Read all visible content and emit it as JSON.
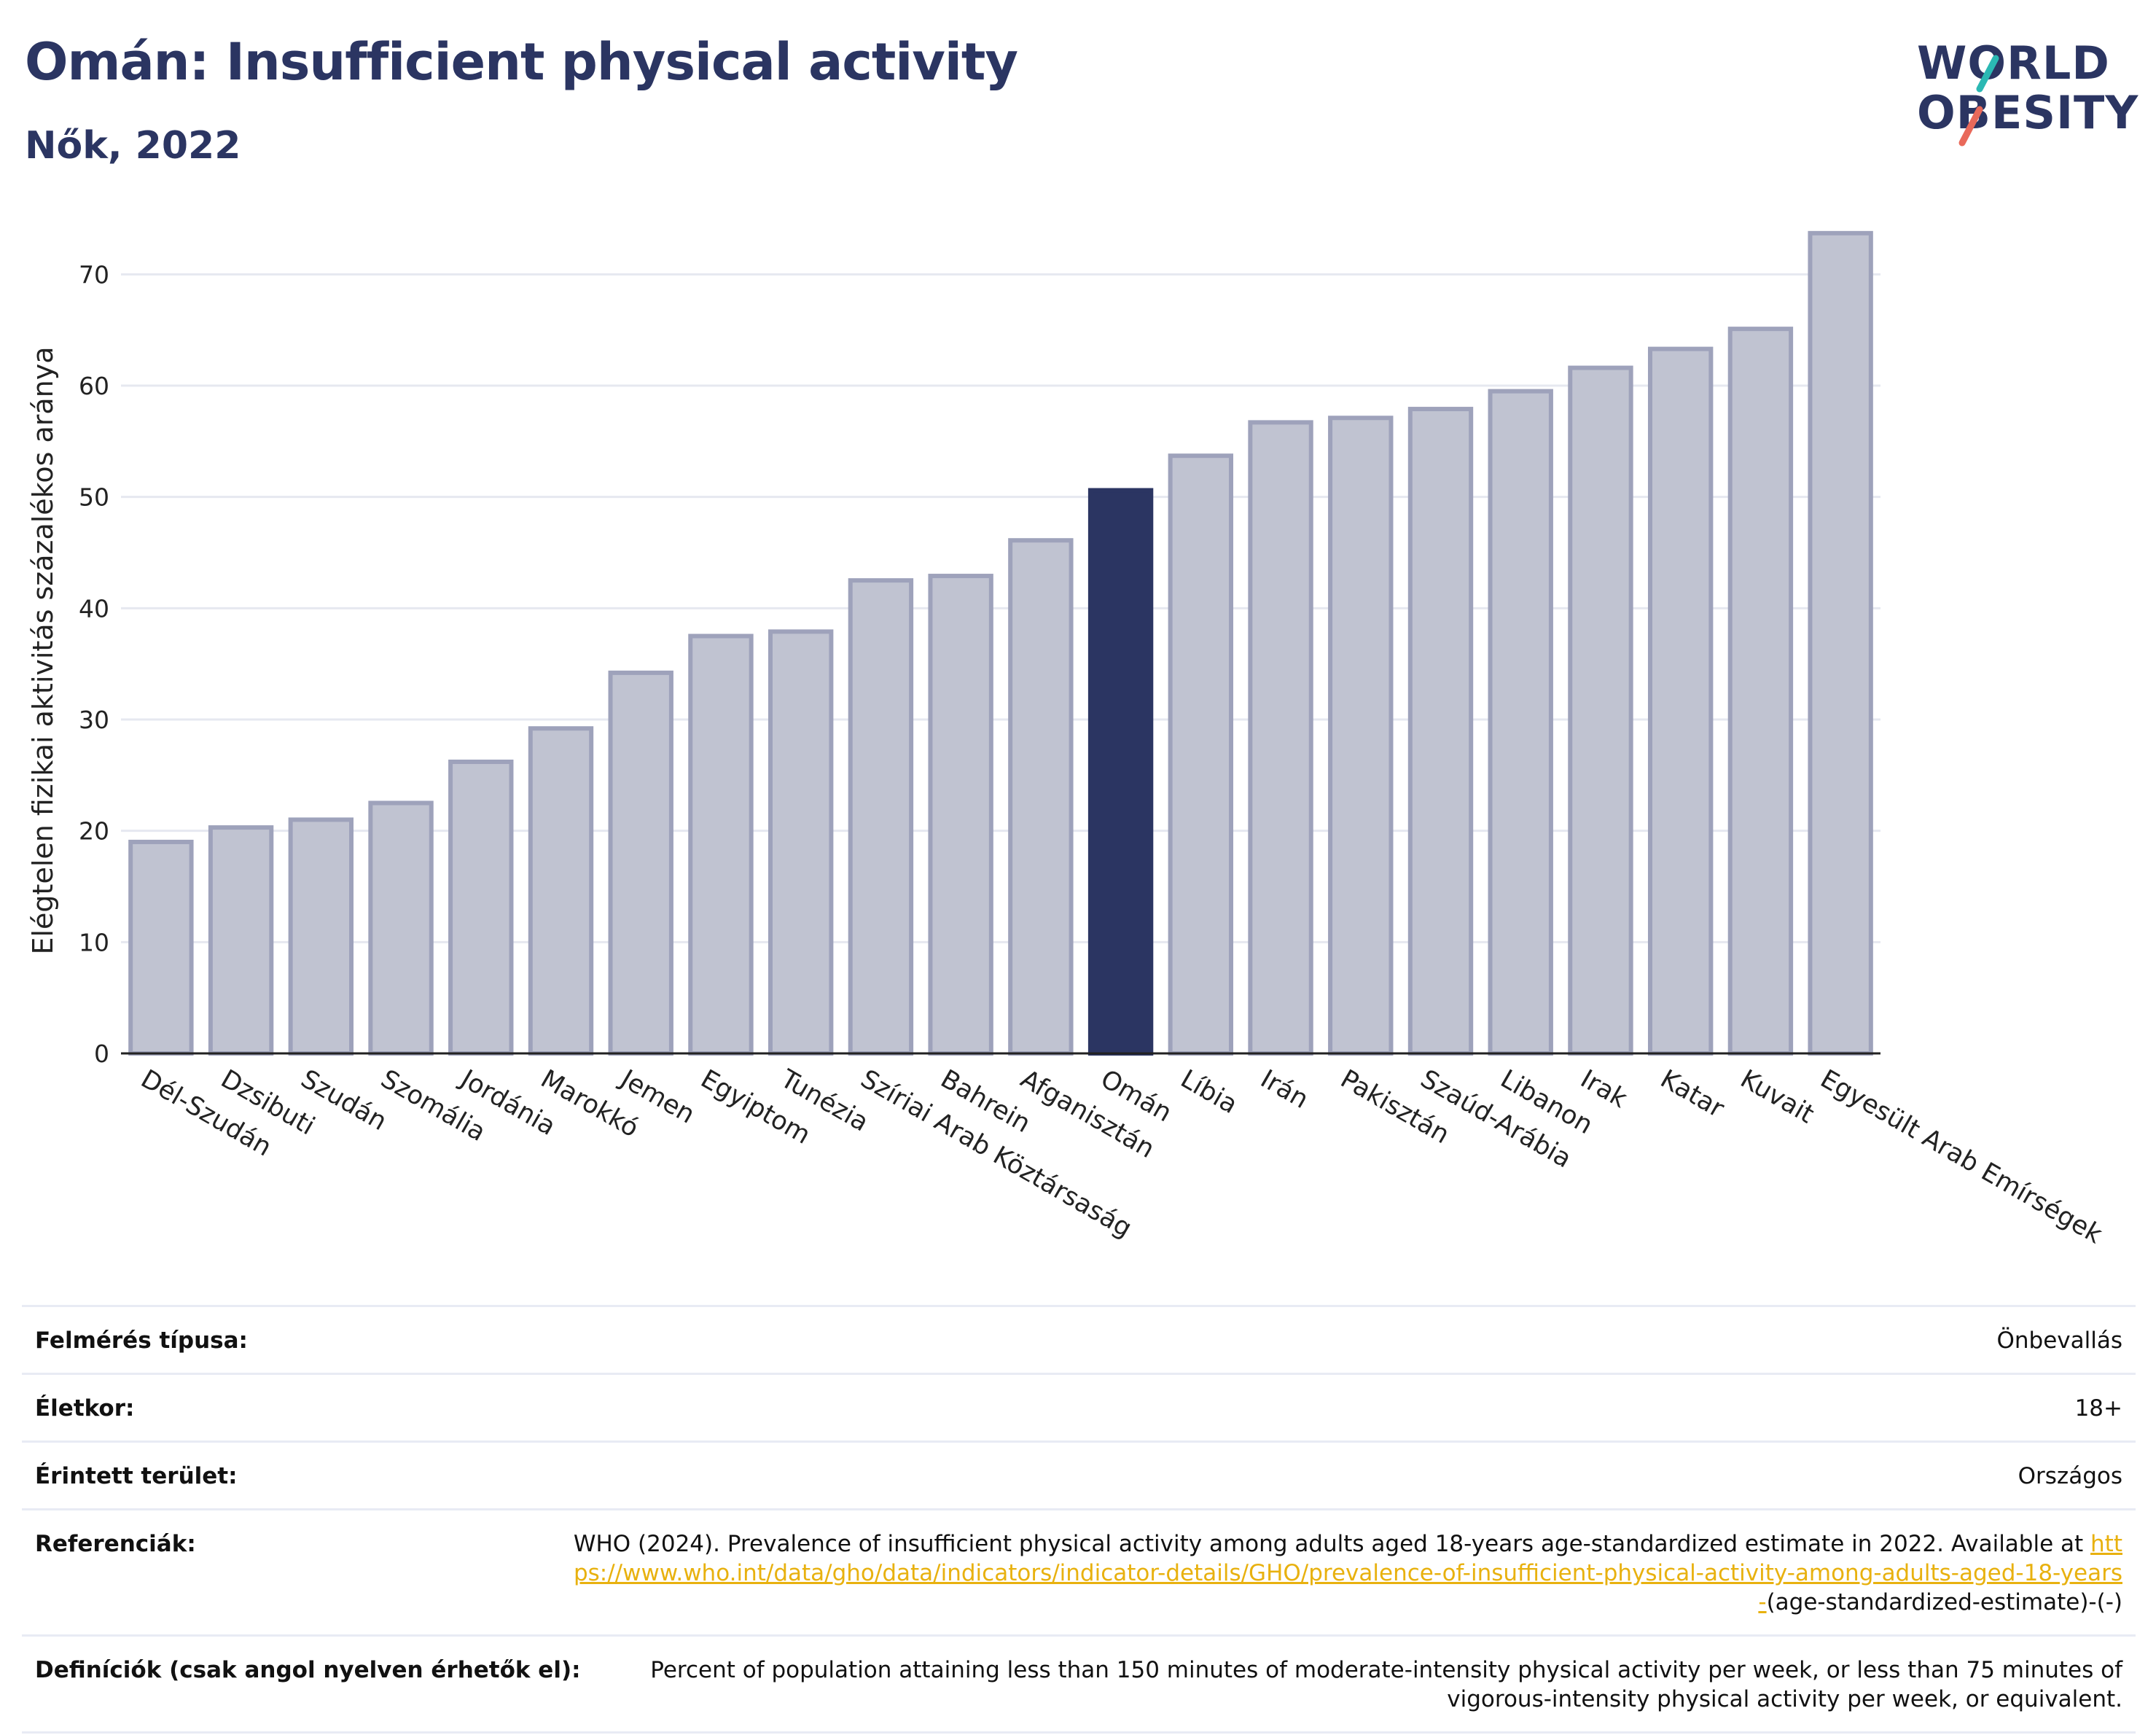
{
  "header": {
    "title": "Omán: Insufficient physical activity",
    "subtitle": "Nők, 2022"
  },
  "logo": {
    "line1": "WORLD",
    "line2": "OBESITY",
    "colors": {
      "text": "#2b3562",
      "slash_top": "#2bb8b3",
      "slash_bottom": "#e9695a"
    }
  },
  "chart_data": {
    "type": "bar",
    "ylabel": "Elégtelen fizikai aktivitás százalékos aránya",
    "xlabel": "",
    "ylim": [
      0,
      75
    ],
    "yticks": [
      0,
      10,
      20,
      30,
      40,
      50,
      60,
      70
    ],
    "grid": true,
    "highlight": "Omán",
    "colors": {
      "bar": "#c0c3d1",
      "bar_edge": "#9ea2bb",
      "highlight": "#2b3562",
      "grid": "#e6e8f0"
    },
    "categories": [
      "Dél-Szudán",
      "Dzsibuti",
      "Szudán",
      "Szomália",
      "Jordánia",
      "Marokkó",
      "Jemen",
      "Egyiptom",
      "Tunézia",
      "Szíriai Arab Köztársaság",
      "Bahrein",
      "Afganisztán",
      "Omán",
      "Líbia",
      "Irán",
      "Pakisztán",
      "Szaúd-Arábia",
      "Libanon",
      "Irak",
      "Katar",
      "Kuvait",
      "Egyesült Arab Emírségek"
    ],
    "values": [
      19.0,
      20.3,
      21.0,
      22.5,
      26.2,
      29.2,
      34.2,
      37.5,
      37.9,
      42.5,
      42.9,
      46.1,
      50.6,
      53.7,
      56.7,
      57.1,
      57.9,
      59.5,
      61.6,
      63.3,
      65.1,
      73.7
    ]
  },
  "info": {
    "survey_label": "Felmérés típusa:",
    "survey_value": "Önbevallás",
    "age_label": "Életkor:",
    "age_value": "18+",
    "area_label": "Érintett terület:",
    "area_value": "Országos",
    "ref_label": "Referenciák:",
    "ref_text": "WHO (2024). Prevalence of insufficient physical activity among adults aged 18-years age-standardized estimate in 2022. Available at",
    "ref_link": "https://www.who.int/data/gho/data/indicators/indicator-details/GHO/prevalence-of-insufficient-physical-activity-among-adults-aged-18-years-",
    "ref_suffix": "(age-standardized-estimate)-(-)",
    "def_label": "Definíciók (csak angol nyelven érhetők el):",
    "def_value": "Percent of population attaining less than 150 minutes of moderate-intensity physical activity per week, or less than 75 minutes of vigorous-intensity physical activity per week, or equivalent."
  }
}
